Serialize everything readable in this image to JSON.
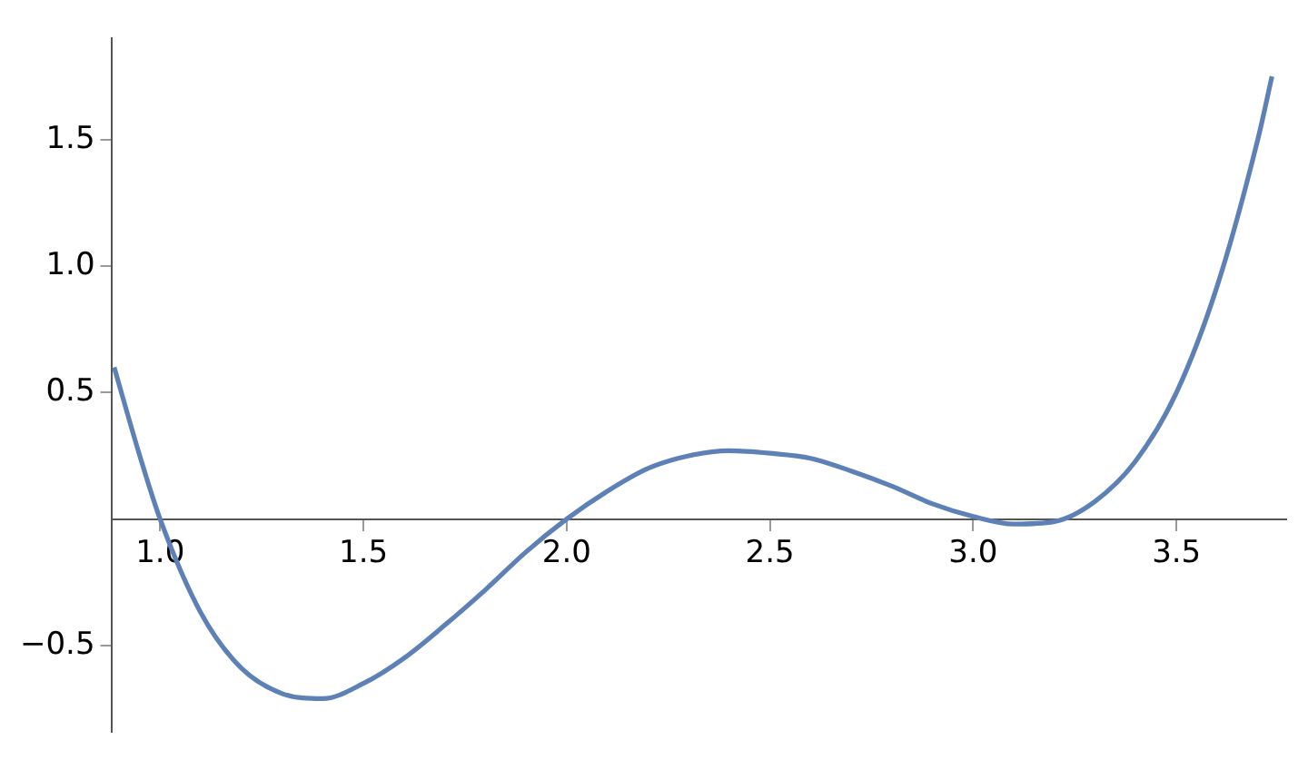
{
  "chart_data": {
    "type": "line",
    "x": [
      0.887,
      0.95,
      1.0,
      1.1,
      1.2,
      1.3,
      1.4,
      1.5,
      1.6,
      1.7,
      1.8,
      1.9,
      2.0,
      2.1,
      2.2,
      2.3,
      2.4,
      2.5,
      2.6,
      2.7,
      2.8,
      2.9,
      3.0,
      3.1,
      3.2,
      3.3,
      3.4,
      3.5,
      3.6,
      3.7,
      3.735
    ],
    "series": [
      {
        "color": "#5d80b6",
        "values": [
          0.6,
          0.25,
          0,
          -0.37,
          -0.59,
          -0.69,
          -0.71,
          -0.65,
          -0.55,
          -0.42,
          -0.28,
          -0.13,
          0,
          0.11,
          0.2,
          0.25,
          0.27,
          0.26,
          0.24,
          0.19,
          0.13,
          0.06,
          0.01,
          -0.02,
          -0.01,
          0.07,
          0.23,
          0.5,
          0.92,
          1.5,
          1.75
        ]
      }
    ],
    "xlim": [
      0.88,
      3.77
    ],
    "ylim": [
      -0.84,
      1.9
    ],
    "xticks": [
      {
        "value": 1,
        "label": "1.0"
      },
      {
        "value": 1.5,
        "label": "1.5"
      },
      {
        "value": 2,
        "label": "2.0"
      },
      {
        "value": 2.5,
        "label": "2.5"
      },
      {
        "value": 3,
        "label": "3.0"
      },
      {
        "value": 3.5,
        "label": "3.5"
      }
    ],
    "yticks": [
      {
        "value": -0.5,
        "label": "−0.5"
      },
      {
        "value": 0.5,
        "label": "0.5"
      },
      {
        "value": 1,
        "label": "1.0"
      },
      {
        "value": 1.5,
        "label": "1.5"
      }
    ],
    "grid": false,
    "legend": false,
    "marker": "none",
    "line_style": "solid"
  }
}
